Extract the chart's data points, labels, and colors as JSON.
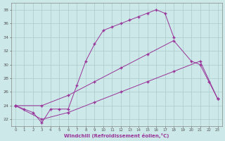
{
  "xlabel": "Windchill (Refroidissement éolien,°C)",
  "bg_color": "#cce8e8",
  "grid_color": "#aacccc",
  "line_color": "#993399",
  "xlim": [
    -0.5,
    23.5
  ],
  "ylim": [
    21,
    39
  ],
  "yticks": [
    22,
    24,
    26,
    28,
    30,
    32,
    34,
    36,
    38
  ],
  "xticks": [
    0,
    1,
    2,
    3,
    4,
    5,
    6,
    7,
    8,
    9,
    10,
    11,
    12,
    13,
    14,
    15,
    16,
    17,
    18,
    19,
    20,
    21,
    22,
    23
  ],
  "line1_x": [
    0,
    1,
    2,
    3,
    4,
    5,
    6,
    7,
    8,
    9,
    10,
    11,
    12,
    13,
    14,
    15,
    16,
    17,
    18
  ],
  "line1_y": [
    24.0,
    23.5,
    23.0,
    21.5,
    23.5,
    23.5,
    23.5,
    27.0,
    30.5,
    33.0,
    35.0,
    35.5,
    36.0,
    36.5,
    37.0,
    37.5,
    38.0,
    37.5,
    34.0
  ],
  "line2_x": [
    0,
    3,
    6,
    9,
    12,
    15,
    18,
    20,
    21,
    22,
    23
  ],
  "line2_y": [
    24.0,
    24.0,
    25.5,
    27.5,
    29.5,
    31.5,
    33.5,
    30.5,
    30.0,
    27.5,
    25.0
  ],
  "line3_x": [
    0,
    3,
    6,
    9,
    12,
    15,
    18,
    21,
    23
  ],
  "line3_y": [
    24.0,
    22.0,
    23.0,
    24.5,
    26.0,
    27.5,
    29.0,
    30.5,
    25.0
  ]
}
